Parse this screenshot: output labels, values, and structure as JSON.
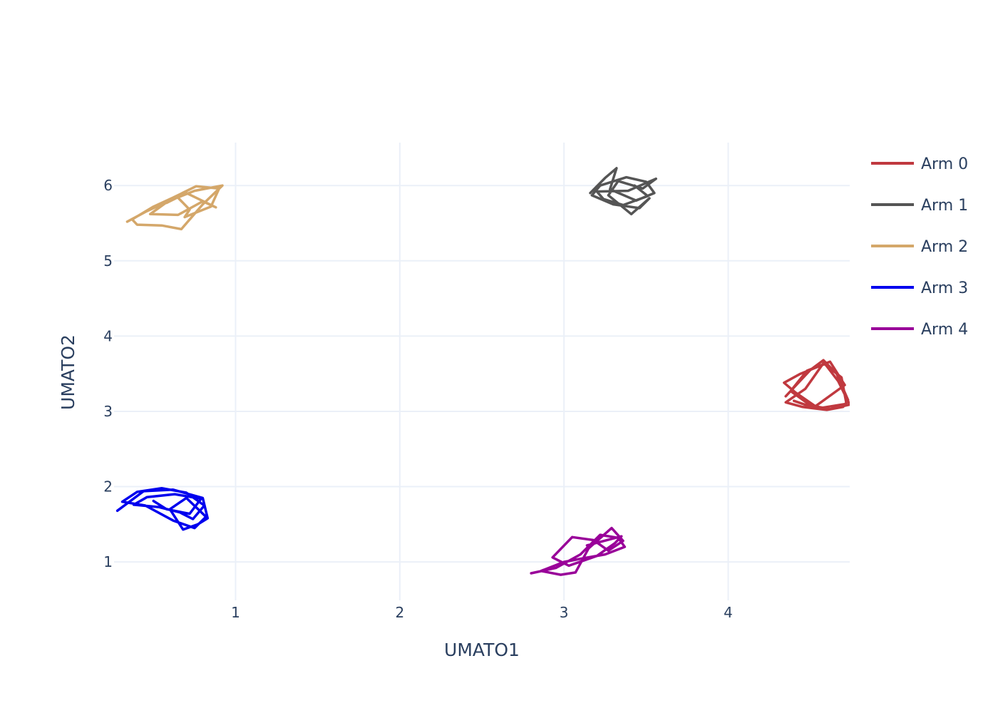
{
  "chart_data": {
    "type": "line",
    "xlabel": "UMATO1",
    "ylabel": "UMATO2",
    "xlim": [
      0.26,
      4.74
    ],
    "ylim": [
      0.49,
      6.57
    ],
    "xticks": [
      1,
      2,
      3,
      4
    ],
    "yticks": [
      1,
      2,
      3,
      4,
      5,
      6
    ],
    "grid": true,
    "legend_position": "right",
    "series": [
      {
        "name": "Arm 0",
        "color": "#c0393f",
        "x": [
          4.35,
          4.5,
          4.58,
          4.66,
          4.73,
          4.7,
          4.6,
          4.45,
          4.35,
          4.47,
          4.58,
          4.69,
          4.72,
          4.55,
          4.41,
          4.34,
          4.44,
          4.59,
          4.67,
          4.74,
          4.62,
          4.5,
          4.38,
          4.48,
          4.62,
          4.71,
          4.52,
          4.4
        ],
        "y": [
          3.2,
          3.55,
          3.68,
          3.5,
          3.15,
          3.06,
          3.02,
          3.06,
          3.12,
          3.3,
          3.64,
          3.45,
          3.1,
          3.04,
          3.25,
          3.38,
          3.5,
          3.63,
          3.4,
          3.09,
          3.03,
          3.08,
          3.27,
          3.54,
          3.66,
          3.35,
          3.05,
          3.14
        ]
      },
      {
        "name": "Arm 1",
        "color": "#555555",
        "x": [
          3.16,
          3.25,
          3.32,
          3.28,
          3.44,
          3.55,
          3.5,
          3.38,
          3.22,
          3.17,
          3.3,
          3.46,
          3.52,
          3.41,
          3.27,
          3.33,
          3.48,
          3.56,
          3.39,
          3.2,
          3.24,
          3.36,
          3.51,
          3.43
        ],
        "y": [
          5.9,
          6.1,
          6.23,
          5.95,
          5.8,
          5.9,
          6.05,
          6.11,
          6.0,
          5.87,
          5.75,
          5.7,
          5.83,
          5.62,
          5.87,
          6.06,
          5.96,
          6.09,
          5.93,
          5.92,
          5.82,
          5.74,
          5.86,
          6.0
        ]
      },
      {
        "name": "Arm 2",
        "color": "#d4a76a",
        "x": [
          0.34,
          0.46,
          0.6,
          0.75,
          0.92,
          0.8,
          0.67,
          0.55,
          0.4,
          0.37,
          0.5,
          0.64,
          0.72,
          0.69,
          0.85,
          0.9,
          0.76,
          0.62,
          0.48,
          0.65,
          0.8,
          0.88,
          0.7,
          0.58
        ],
        "y": [
          5.52,
          5.66,
          5.8,
          5.93,
          6.0,
          5.75,
          5.42,
          5.47,
          5.48,
          5.55,
          5.72,
          5.86,
          5.68,
          5.58,
          5.72,
          5.96,
          5.99,
          5.84,
          5.62,
          5.61,
          5.79,
          5.71,
          5.9,
          5.77
        ]
      },
      {
        "name": "Arm 3",
        "color": "#0000ee",
        "x": [
          0.28,
          0.44,
          0.62,
          0.8,
          0.83,
          0.77,
          0.68,
          0.6,
          0.7,
          0.82,
          0.75,
          0.62,
          0.45,
          0.31,
          0.4,
          0.55,
          0.7,
          0.81,
          0.74,
          0.66,
          0.53,
          0.38,
          0.46,
          0.63,
          0.79,
          0.72,
          0.58,
          0.5
        ],
        "y": [
          1.68,
          1.94,
          1.96,
          1.85,
          1.58,
          1.5,
          1.43,
          1.7,
          1.85,
          1.6,
          1.45,
          1.55,
          1.75,
          1.8,
          1.93,
          1.98,
          1.92,
          1.75,
          1.57,
          1.66,
          1.73,
          1.76,
          1.86,
          1.9,
          1.84,
          1.64,
          1.7,
          1.81
        ]
      },
      {
        "name": "Arm 4",
        "color": "#990099",
        "x": [
          2.8,
          2.95,
          3.1,
          3.22,
          3.33,
          3.37,
          3.25,
          3.12,
          3.0,
          2.86,
          2.98,
          3.07,
          3.15,
          3.29,
          3.36,
          3.27,
          3.18,
          3.05,
          2.93,
          3.03,
          3.2,
          3.31,
          3.35,
          3.14
        ],
        "y": [
          0.85,
          0.92,
          1.1,
          1.36,
          1.32,
          1.2,
          1.1,
          1.05,
          1.0,
          0.88,
          0.83,
          0.86,
          1.18,
          1.45,
          1.28,
          1.15,
          1.29,
          1.33,
          1.06,
          0.95,
          1.08,
          1.25,
          1.34,
          1.22
        ]
      }
    ]
  }
}
